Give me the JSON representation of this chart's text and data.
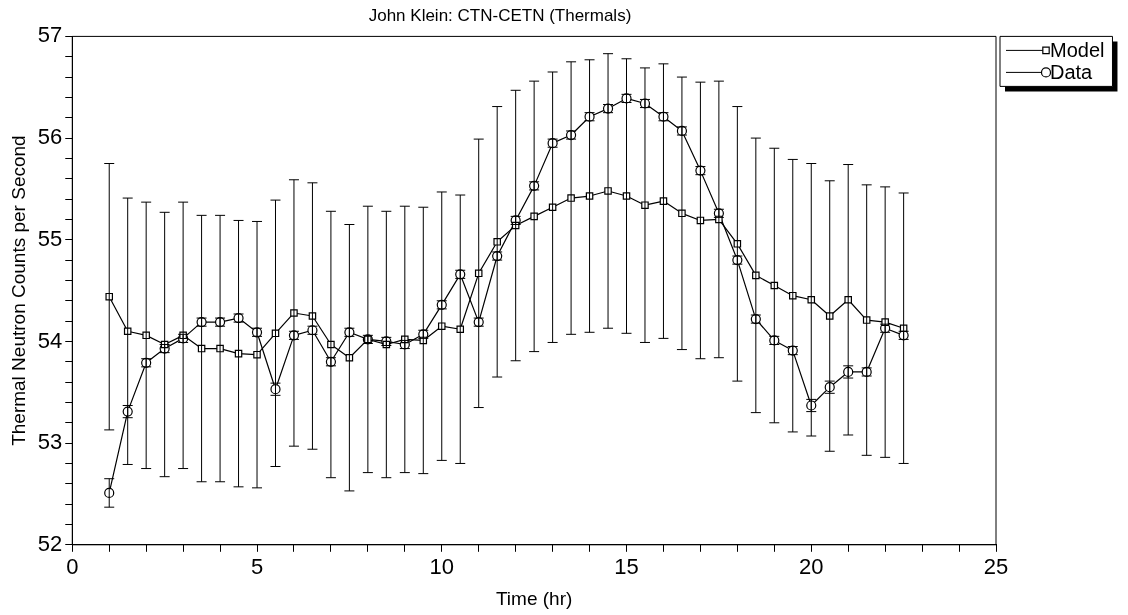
{
  "chart_data": {
    "type": "line",
    "title": "John Klein: CTN-CETN (Thermals)",
    "xlabel": "Time (hr)",
    "ylabel": "Thermal Neutron Counts per Second",
    "x": [
      1,
      1.5,
      2,
      2.5,
      3,
      3.5,
      4,
      4.5,
      5,
      5.5,
      6,
      6.5,
      7,
      7.5,
      8,
      8.5,
      9,
      9.5,
      10,
      10.5,
      11,
      11.5,
      12,
      12.5,
      13,
      13.5,
      14,
      14.5,
      15,
      15.5,
      16,
      16.5,
      17,
      17.5,
      18,
      18.5,
      19,
      19.5,
      20,
      20.5,
      21,
      21.5,
      22,
      22.5
    ],
    "series": [
      {
        "name": "Model",
        "color": "#000000",
        "marker": "square",
        "values": [
          54.44,
          54.1,
          54.06,
          53.97,
          54.06,
          53.93,
          53.93,
          53.88,
          53.87,
          54.08,
          54.28,
          54.25,
          53.97,
          53.84,
          54.02,
          53.97,
          54.02,
          54.01,
          54.15,
          54.12,
          54.67,
          54.98,
          55.14,
          55.23,
          55.32,
          55.41,
          55.43,
          55.48,
          55.43,
          55.34,
          55.38,
          55.26,
          55.19,
          55.2,
          54.96,
          54.65,
          54.55,
          54.45,
          54.41,
          54.25,
          54.41,
          54.21,
          54.19,
          54.13
        ],
        "errors": [
          1.31,
          1.31,
          1.31,
          1.3,
          1.31,
          1.31,
          1.31,
          1.31,
          1.31,
          1.31,
          1.31,
          1.31,
          1.31,
          1.31,
          1.31,
          1.31,
          1.31,
          1.31,
          1.32,
          1.32,
          1.32,
          1.33,
          1.33,
          1.33,
          1.33,
          1.34,
          1.34,
          1.35,
          1.35,
          1.35,
          1.35,
          1.34,
          1.36,
          1.36,
          1.35,
          1.35,
          1.35,
          1.34,
          1.34,
          1.33,
          1.33,
          1.33,
          1.33,
          1.33
        ]
      },
      {
        "name": "Data",
        "color": "#000000",
        "marker": "circle",
        "values": [
          52.51,
          53.31,
          53.79,
          53.93,
          54.03,
          54.19,
          54.19,
          54.23,
          54.09,
          53.53,
          54.06,
          54.11,
          53.8,
          54.09,
          54.02,
          54.0,
          53.97,
          54.07,
          54.36,
          54.66,
          54.19,
          54.84,
          55.19,
          55.53,
          55.95,
          56.03,
          56.21,
          56.29,
          56.39,
          56.34,
          56.21,
          56.07,
          55.68,
          55.26,
          54.8,
          54.22,
          54.01,
          53.91,
          53.37,
          53.55,
          53.7,
          53.7,
          54.13,
          54.06
        ],
        "errors": [
          0.14,
          0.06,
          0.04,
          0.04,
          0.04,
          0.04,
          0.04,
          0.04,
          0.04,
          0.06,
          0.04,
          0.04,
          0.04,
          0.04,
          0.04,
          0.04,
          0.04,
          0.04,
          0.04,
          0.04,
          0.04,
          0.04,
          0.04,
          0.04,
          0.04,
          0.04,
          0.04,
          0.04,
          0.04,
          0.04,
          0.04,
          0.04,
          0.04,
          0.04,
          0.04,
          0.04,
          0.04,
          0.04,
          0.06,
          0.06,
          0.06,
          0.04,
          0.04,
          0.04
        ]
      }
    ],
    "xlim": [
      0,
      25
    ],
    "ylim": [
      52,
      57
    ],
    "xticks": [
      0,
      {
        "value": 1,
        "label": null
      },
      {
        "value": 2,
        "label": null
      },
      {
        "value": 3,
        "label": null
      },
      {
        "value": 4,
        "label": null
      },
      5,
      {
        "value": 6,
        "label": null
      },
      {
        "value": 7,
        "label": null
      },
      {
        "value": 8,
        "label": null
      },
      {
        "value": 9,
        "label": null
      },
      10,
      {
        "value": 11,
        "label": null
      },
      {
        "value": 12,
        "label": null
      },
      {
        "value": 13,
        "label": null
      },
      {
        "value": 14,
        "label": null
      },
      15,
      {
        "value": 16,
        "label": null
      },
      {
        "value": 17,
        "label": null
      },
      {
        "value": 18,
        "label": null
      },
      {
        "value": 19,
        "label": null
      },
      20,
      {
        "value": 21,
        "label": null
      },
      {
        "value": 22,
        "label": null
      },
      {
        "value": 23,
        "label": null
      },
      {
        "value": 24,
        "label": null
      },
      25
    ],
    "yticks": [
      52,
      {
        "value": 52.2,
        "label": null
      },
      {
        "value": 52.4,
        "label": null
      },
      {
        "value": 52.6,
        "label": null
      },
      {
        "value": 52.8,
        "label": null
      },
      53,
      {
        "value": 53.2,
        "label": null
      },
      {
        "value": 53.4,
        "label": null
      },
      {
        "value": 53.6,
        "label": null
      },
      {
        "value": 53.8,
        "label": null
      },
      54,
      {
        "value": 54.2,
        "label": null
      },
      {
        "value": 54.4,
        "label": null
      },
      {
        "value": 54.6,
        "label": null
      },
      {
        "value": 54.8,
        "label": null
      },
      55,
      {
        "value": 55.2,
        "label": null
      },
      {
        "value": 55.4,
        "label": null
      },
      {
        "value": 55.6,
        "label": null
      },
      {
        "value": 55.8,
        "label": null
      },
      56,
      {
        "value": 56.2,
        "label": null
      },
      {
        "value": 56.4,
        "label": null
      },
      {
        "value": 56.6,
        "label": null
      },
      {
        "value": 56.8,
        "label": null
      },
      57
    ],
    "legend": "top right",
    "line_style": "solid"
  }
}
